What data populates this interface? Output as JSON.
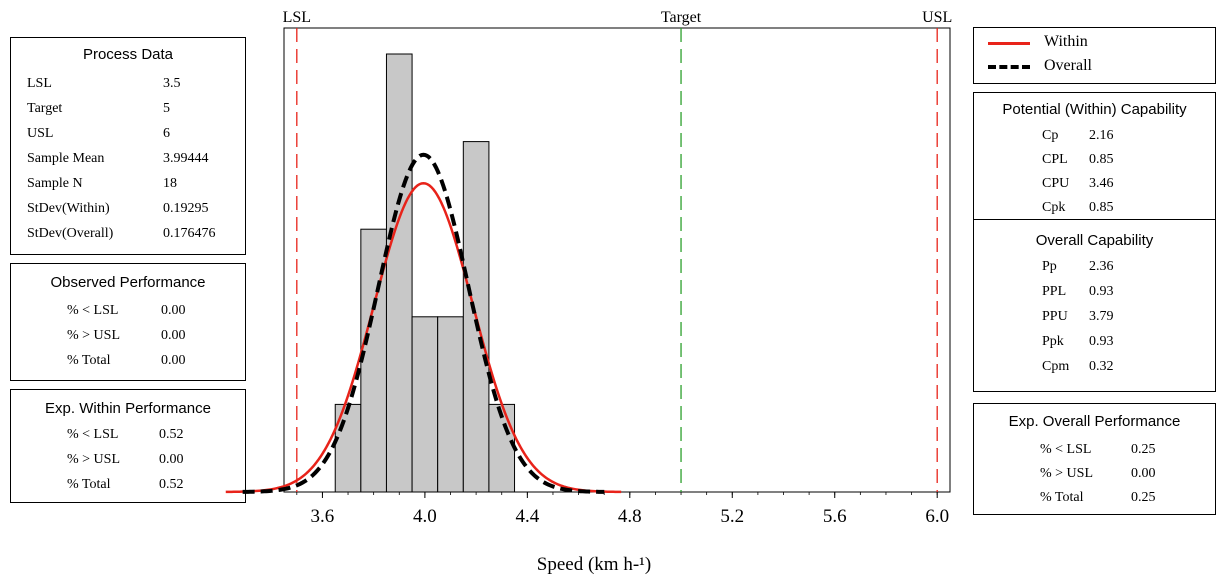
{
  "process_data": {
    "title": "Process Data",
    "rows": [
      {
        "label": "LSL",
        "value": "3.5"
      },
      {
        "label": "Target",
        "value": "5"
      },
      {
        "label": "USL",
        "value": "6"
      },
      {
        "label": "Sample Mean",
        "value": "3.99444"
      },
      {
        "label": "Sample N",
        "value": "18"
      },
      {
        "label": "StDev(Within)",
        "value": "0.19295"
      },
      {
        "label": "StDev(Overall)",
        "value": "0.176476"
      }
    ]
  },
  "observed_performance": {
    "title": "Observed Performance",
    "rows": [
      {
        "label": "% < LSL",
        "value": "0.00"
      },
      {
        "label": "% > USL",
        "value": "0.00"
      },
      {
        "label": "% Total",
        "value": "0.00"
      }
    ]
  },
  "exp_within_performance": {
    "title": "Exp. Within Performance",
    "rows": [
      {
        "label": "% < LSL",
        "value": "0.52"
      },
      {
        "label": "% > USL",
        "value": "0.00"
      },
      {
        "label": "% Total",
        "value": "0.52"
      }
    ]
  },
  "legend": {
    "within": "Within",
    "overall": "Overall"
  },
  "potential_capability": {
    "title": "Potential (Within) Capability",
    "rows": [
      {
        "label": "Cp",
        "value": "2.16"
      },
      {
        "label": "CPL",
        "value": "0.85"
      },
      {
        "label": "CPU",
        "value": "3.46"
      },
      {
        "label": "Cpk",
        "value": "0.85"
      }
    ]
  },
  "overall_capability": {
    "title": "Overall Capability",
    "rows": [
      {
        "label": "Pp",
        "value": "2.36"
      },
      {
        "label": "PPL",
        "value": "0.93"
      },
      {
        "label": "PPU",
        "value": "3.79"
      },
      {
        "label": "Ppk",
        "value": "0.93"
      },
      {
        "label": "Cpm",
        "value": "0.32"
      }
    ]
  },
  "exp_overall_performance": {
    "title": "Exp. Overall Performance",
    "rows": [
      {
        "label": "% < LSL",
        "value": "0.25"
      },
      {
        "label": "% > USL",
        "value": "0.00"
      },
      {
        "label": "% Total",
        "value": "0.25"
      }
    ]
  },
  "chart_data": {
    "type": "bar",
    "xlabel": "Speed (km h-¹)",
    "xlim": [
      3.45,
      6.05
    ],
    "ylim": [
      0,
      1.0
    ],
    "x_ticks": [
      "3.6",
      "4.0",
      "4.4",
      "4.8",
      "5.2",
      "5.6",
      "6.0"
    ],
    "x_tick_values": [
      3.6,
      4.0,
      4.4,
      4.8,
      5.2,
      5.6,
      6.0
    ],
    "bins": [
      {
        "x0": 3.65,
        "x1": 3.75,
        "height": 0.2
      },
      {
        "x0": 3.75,
        "x1": 3.85,
        "height": 0.6
      },
      {
        "x0": 3.85,
        "x1": 3.95,
        "height": 1.0
      },
      {
        "x0": 3.95,
        "x1": 4.05,
        "height": 0.4
      },
      {
        "x0": 4.05,
        "x1": 4.15,
        "height": 0.4
      },
      {
        "x0": 4.15,
        "x1": 4.25,
        "height": 0.8
      },
      {
        "x0": 4.25,
        "x1": 4.35,
        "height": 0.2
      }
    ],
    "spec_lines": [
      {
        "label": "LSL",
        "x": 3.5,
        "color": "#e8231a"
      },
      {
        "label": "Target",
        "x": 5.0,
        "color": "#2ca02c"
      },
      {
        "label": "USL",
        "x": 6.0,
        "color": "#e8231a"
      }
    ],
    "curves": [
      {
        "name": "Within",
        "mean": 3.99444,
        "sd": 0.19295,
        "peak": 0.705,
        "color": "#e8231a",
        "dashed": false
      },
      {
        "name": "Overall",
        "mean": 3.99444,
        "sd": 0.176476,
        "peak": 0.77,
        "color": "#000000",
        "dashed": true
      }
    ],
    "bar_color": "#c8c8c8"
  }
}
